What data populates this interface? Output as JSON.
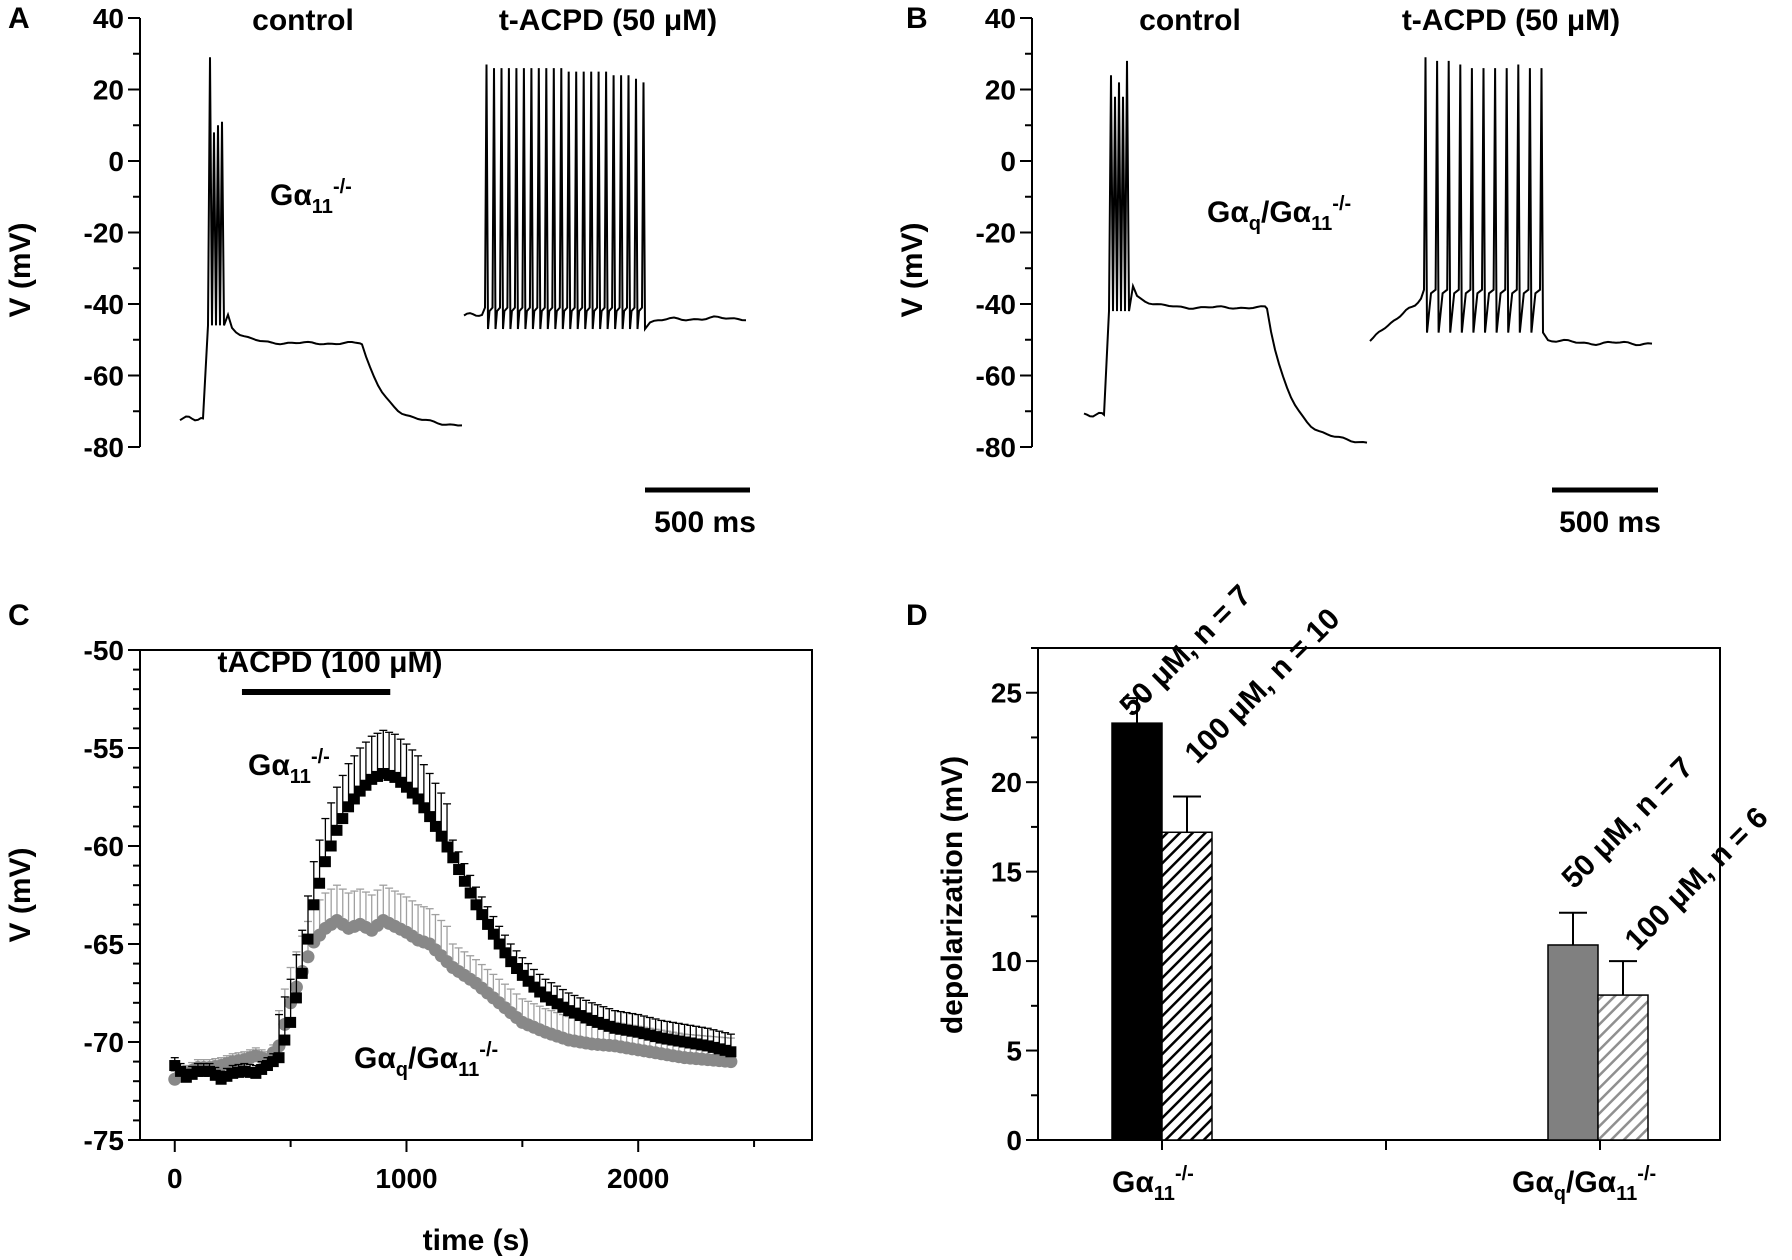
{
  "chart_data": [
    {
      "panel": "A",
      "type": "line",
      "ylabel": "V (mV)",
      "ylim": [
        -80,
        40
      ],
      "yticks": [
        40,
        20,
        0,
        -20,
        -40,
        -60,
        -80
      ],
      "trace_labels": [
        "control",
        "t-ACPD (50 μM)"
      ],
      "genotype_label": "Gα11-/-",
      "genotype_main": "Gα",
      "genotype_sub": "11",
      "genotype_sup": "-/-",
      "scale_bar": "500 ms",
      "control": {
        "rest_mV": -72,
        "step_plateau_mV": -51,
        "after_mV": -74,
        "spike_peak_mV": 29,
        "spike_count": 4
      },
      "tacpd": {
        "baseline_mV": -43,
        "trough_mV": -47,
        "spike_peak_mV": 26,
        "spike_count": 22,
        "after_mV": -44
      }
    },
    {
      "panel": "B",
      "type": "line",
      "ylabel": "V (mV)",
      "ylim": [
        -80,
        40
      ],
      "yticks": [
        40,
        20,
        0,
        -20,
        -40,
        -60,
        -80
      ],
      "trace_labels": [
        "control",
        "t-ACPD (50 μM)"
      ],
      "genotype_label": "Gαq/Gα11-/-",
      "genotype_main1": "Gα",
      "genotype_sub1": "q",
      "genotype_main2": "/Gα",
      "genotype_sub2": "11",
      "genotype_sup": "-/-",
      "scale_bar": "500 ms",
      "control": {
        "rest_mV": -71,
        "step_plateau_mV": -41,
        "after_mV": -79,
        "spike_peak_mV": 28,
        "spike_count": 5
      },
      "tacpd": {
        "baseline_mV": -50,
        "depolarized_mV": -38,
        "trough_mV": -48,
        "spike_peak_mV": 29,
        "spike_count": 11,
        "after_mV": -51
      }
    },
    {
      "panel": "C",
      "type": "scatter",
      "xlabel": "time (s)",
      "ylabel": "V (mV)",
      "xlim": [
        -150,
        2750
      ],
      "ylim": [
        -75,
        -50
      ],
      "xticks": [
        0,
        1000,
        2000
      ],
      "yticks": [
        -50,
        -55,
        -60,
        -65,
        -70,
        -75
      ],
      "bar_label": "tACPD (100 μM)",
      "bar_range_s": [
        290,
        930
      ],
      "series": [
        {
          "name": "Gα11-/-",
          "label_main": "Gα",
          "label_sub": "11",
          "label_sup": "-/-",
          "color": "#000000",
          "marker": "square",
          "anchors": [
            [
              0,
              -71.2
            ],
            [
              50,
              -71.8
            ],
            [
              100,
              -71.5
            ],
            [
              150,
              -71.5
            ],
            [
              200,
              -71.9
            ],
            [
              250,
              -71.6
            ],
            [
              300,
              -71.5
            ],
            [
              350,
              -71.6
            ],
            [
              400,
              -71.2
            ],
            [
              450,
              -70.8
            ],
            [
              500,
              -69.0
            ],
            [
              550,
              -66.5
            ],
            [
              600,
              -63.0
            ],
            [
              650,
              -60.8
            ],
            [
              700,
              -59.2
            ],
            [
              750,
              -58.0
            ],
            [
              800,
              -57.2
            ],
            [
              850,
              -56.6
            ],
            [
              900,
              -56.3
            ],
            [
              950,
              -56.5
            ],
            [
              1000,
              -57.0
            ],
            [
              1050,
              -57.6
            ],
            [
              1100,
              -58.5
            ],
            [
              1150,
              -59.5
            ],
            [
              1200,
              -60.6
            ],
            [
              1250,
              -61.8
            ],
            [
              1300,
              -63.0
            ],
            [
              1350,
              -64.0
            ],
            [
              1400,
              -65.0
            ],
            [
              1450,
              -65.9
            ],
            [
              1500,
              -66.6
            ],
            [
              1550,
              -67.2
            ],
            [
              1600,
              -67.7
            ],
            [
              1700,
              -68.4
            ],
            [
              1800,
              -68.9
            ],
            [
              1900,
              -69.3
            ],
            [
              2000,
              -69.5
            ],
            [
              2100,
              -69.8
            ],
            [
              2200,
              -70.0
            ],
            [
              2300,
              -70.2
            ],
            [
              2400,
              -70.5
            ]
          ]
        },
        {
          "name": "Gαq/Gα11-/-",
          "label_main1": "Gα",
          "label_sub1": "q",
          "label_main2": "/Gα",
          "label_sub2": "11",
          "label_sup": "-/-",
          "color": "#888888",
          "marker": "circle",
          "anchors": [
            [
              0,
              -71.9
            ],
            [
              50,
              -71.6
            ],
            [
              100,
              -71.3
            ],
            [
              150,
              -71.3
            ],
            [
              200,
              -71.2
            ],
            [
              250,
              -71.0
            ],
            [
              300,
              -70.9
            ],
            [
              350,
              -70.7
            ],
            [
              400,
              -70.9
            ],
            [
              450,
              -70.2
            ],
            [
              500,
              -68.0
            ],
            [
              550,
              -66.4
            ],
            [
              600,
              -64.9
            ],
            [
              650,
              -64.2
            ],
            [
              700,
              -63.8
            ],
            [
              750,
              -64.2
            ],
            [
              800,
              -64.0
            ],
            [
              850,
              -64.3
            ],
            [
              900,
              -63.8
            ],
            [
              950,
              -64.1
            ],
            [
              1000,
              -64.4
            ],
            [
              1050,
              -64.8
            ],
            [
              1100,
              -65.0
            ],
            [
              1150,
              -65.6
            ],
            [
              1200,
              -66.2
            ],
            [
              1300,
              -67.0
            ],
            [
              1400,
              -68.0
            ],
            [
              1500,
              -69.0
            ],
            [
              1600,
              -69.5
            ],
            [
              1700,
              -69.9
            ],
            [
              1800,
              -70.1
            ],
            [
              1900,
              -70.2
            ],
            [
              2000,
              -70.4
            ],
            [
              2100,
              -70.6
            ],
            [
              2200,
              -70.8
            ],
            [
              2300,
              -70.9
            ],
            [
              2400,
              -71.0
            ]
          ]
        }
      ]
    },
    {
      "panel": "D",
      "type": "bar",
      "ylabel": "depolarization (mV)",
      "ylim": [
        0,
        27.5
      ],
      "yticks": [
        0,
        5,
        10,
        15,
        20,
        25
      ],
      "categories": [
        "Gα11-/-",
        "Gαq/Gα11-/-"
      ],
      "cat1_main": "Gα",
      "cat1_sub": "11",
      "cat1_sup": "-/-",
      "cat2_main1": "Gα",
      "cat2_sub1": "q",
      "cat2_main2": "/Gα",
      "cat2_sub2": "11",
      "cat2_sup": "-/-",
      "bars": [
        {
          "group": 0,
          "label": "50 μM, n = 7",
          "value": 23.3,
          "error": 1.4,
          "fill": "#000000",
          "hatch": false
        },
        {
          "group": 0,
          "label": "100 μM, n = 10",
          "value": 17.2,
          "error": 2.0,
          "fill": "#000000",
          "hatch": true
        },
        {
          "group": 1,
          "label": "50 μM, n = 7",
          "value": 10.9,
          "error": 1.8,
          "fill": "#808080",
          "hatch": false
        },
        {
          "group": 1,
          "label": "100 μM, n = 6",
          "value": 8.1,
          "error": 1.9,
          "fill": "#909090",
          "hatch": true
        }
      ]
    }
  ],
  "panel_letters": [
    "A",
    "B",
    "C",
    "D"
  ]
}
